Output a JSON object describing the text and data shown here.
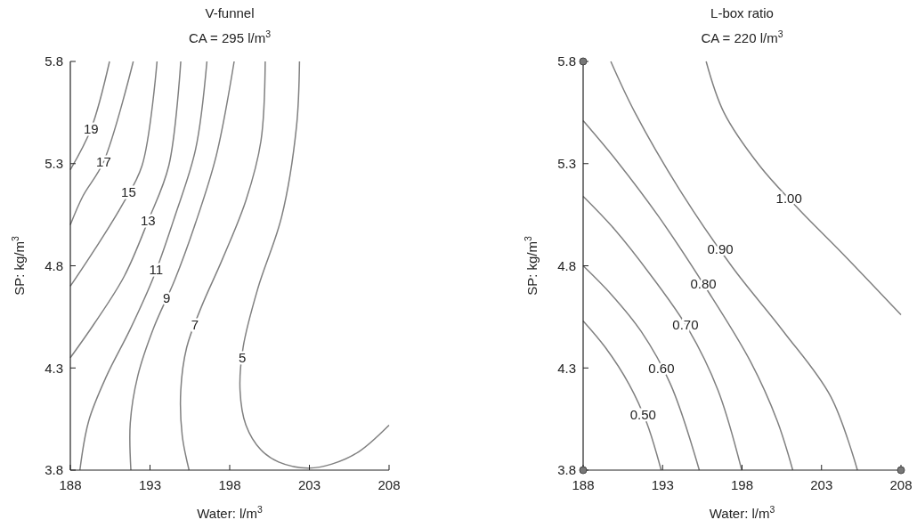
{
  "chart_data": [
    {
      "type": "line",
      "title": "V-funnel",
      "subtitle": "CA = 295 l/m$^{3}$",
      "xlabel": "Water: l/m$^{3}$",
      "ylabel": "SP: kg/m$^{3}$",
      "xlim": [
        188,
        208
      ],
      "ylim": [
        3.8,
        5.8
      ],
      "xticks": [
        188,
        193,
        198,
        203,
        208
      ],
      "yticks": [
        3.8,
        4.3,
        4.8,
        5.3,
        5.8
      ],
      "marker": "none",
      "line_style": "solid",
      "series": [
        {
          "name": "19",
          "color": "#808080",
          "x": [
            188,
            189.3,
            190.46
          ],
          "values": [
            5.27,
            5.47,
            5.8
          ]
        },
        {
          "name": "17",
          "color": "#808080",
          "x": [
            188,
            188.78,
            190.09,
            191.95
          ],
          "values": [
            5.0,
            5.14,
            5.31,
            5.8
          ]
        },
        {
          "name": "15",
          "color": "#808080",
          "x": [
            188,
            189.53,
            191.2,
            192.5,
            193.44
          ],
          "values": [
            4.7,
            4.88,
            5.09,
            5.29,
            5.8
          ]
        },
        {
          "name": "13",
          "color": "#808080",
          "x": [
            188,
            189.53,
            191.39,
            192.88,
            194.18,
            194.93
          ],
          "values": [
            4.35,
            4.52,
            4.75,
            5.02,
            5.29,
            5.8
          ]
        },
        {
          "name": "11",
          "color": "#808080",
          "x": [
            188.6,
            189.15,
            190.27,
            191.76,
            193.25,
            194.55,
            195.86,
            196.57
          ],
          "values": [
            3.8,
            4.04,
            4.26,
            4.49,
            4.75,
            5.04,
            5.37,
            5.8
          ]
        },
        {
          "name": "9",
          "color": "#808080",
          "x": [
            191.8,
            191.76,
            192.23,
            193.25,
            194.55,
            195.86,
            197.16,
            198.28
          ],
          "values": [
            3.8,
            4.03,
            4.26,
            4.5,
            4.73,
            5.01,
            5.34,
            5.8
          ]
        },
        {
          "name": "7",
          "color": "#808080",
          "x": [
            195.45,
            195.02,
            194.93,
            195.3,
            196.23,
            197.53,
            199.02,
            199.96,
            200.23
          ],
          "values": [
            3.8,
            3.97,
            4.19,
            4.4,
            4.6,
            4.83,
            5.12,
            5.41,
            5.8
          ]
        },
        {
          "name": "5",
          "color": "#808080",
          "x": [
            202.38,
            202.19,
            201.26,
            199.77,
            198.84,
            198.65,
            199.02,
            199.95,
            201.07,
            202.93,
            204.42,
            206.1,
            208
          ],
          "values": [
            5.8,
            5.48,
            5.04,
            4.69,
            4.4,
            4.19,
            4.02,
            3.9,
            3.84,
            3.81,
            3.83,
            3.89,
            4.02
          ]
        }
      ]
    },
    {
      "type": "line",
      "title": "L-box ratio",
      "subtitle": "CA = 220 l/m$^{3}$",
      "xlabel": "Water: l/m$^{3}$",
      "ylabel": "SP: kg/m$^{3}$",
      "xlim": [
        188,
        208
      ],
      "ylim": [
        3.8,
        5.8
      ],
      "xticks": [
        188,
        193,
        198,
        203,
        208
      ],
      "yticks": [
        3.8,
        4.3,
        4.8,
        5.3,
        5.8
      ],
      "marker": "none",
      "line_style": "solid",
      "series": [
        {
          "name": "0.50",
          "color": "#808080",
          "x": [
            188,
            189.4,
            190.89,
            192.01,
            192.91
          ],
          "values": [
            4.53,
            4.4,
            4.22,
            4.03,
            3.8
          ]
        },
        {
          "name": "0.60",
          "color": "#808080",
          "x": [
            188,
            189.77,
            191.64,
            193.5,
            195.31
          ],
          "values": [
            4.8,
            4.66,
            4.48,
            4.22,
            3.8
          ]
        },
        {
          "name": "0.70",
          "color": "#808080",
          "x": [
            188,
            189.96,
            192.2,
            194.62,
            196.49,
            197.98
          ],
          "values": [
            5.14,
            4.98,
            4.76,
            4.49,
            4.19,
            3.8
          ]
        },
        {
          "name": "0.80",
          "color": "#808080",
          "x": [
            188,
            190.15,
            192.76,
            195.74,
            198.54,
            200.22,
            201.19
          ],
          "values": [
            5.51,
            5.31,
            5.04,
            4.69,
            4.33,
            4.04,
            3.8
          ]
        },
        {
          "name": "0.90",
          "color": "#808080",
          "x": [
            189.74,
            191.26,
            194.25,
            197.42,
            200.59,
            203.58,
            205.26
          ],
          "values": [
            5.8,
            5.55,
            5.15,
            4.79,
            4.48,
            4.16,
            3.8
          ]
        },
        {
          "name": "1.00",
          "color": "#808080",
          "x": [
            195.74,
            196.86,
            199.1,
            201.53,
            204.32,
            208
          ],
          "values": [
            5.8,
            5.55,
            5.29,
            5.08,
            4.86,
            4.56
          ]
        }
      ]
    }
  ]
}
